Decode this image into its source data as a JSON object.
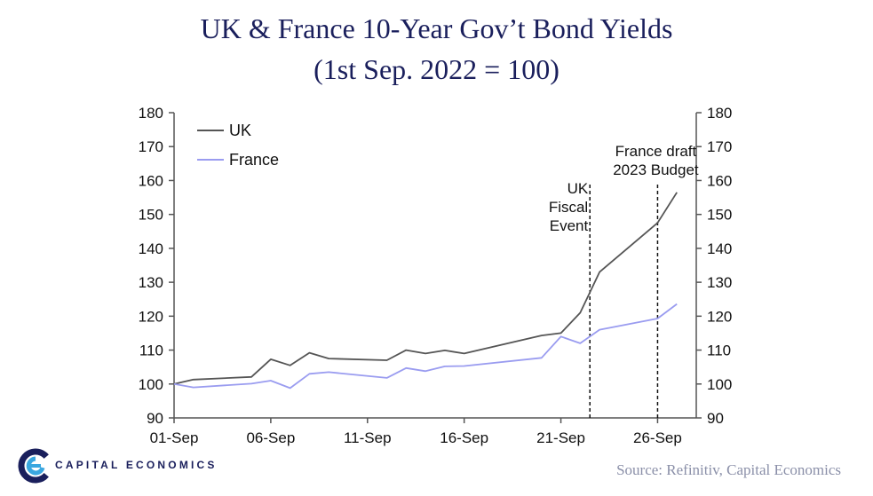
{
  "chart_data": {
    "type": "line",
    "title": "UK & France 10-Year Gov’t Bond Yields",
    "subtitle": "(1st Sep. 2022 = 100)",
    "xlabel": "",
    "ylabel": "",
    "x_range_days": [
      1,
      28
    ],
    "ylim": [
      90,
      180
    ],
    "y_ticks": [
      90,
      100,
      110,
      120,
      130,
      140,
      150,
      160,
      170,
      180
    ],
    "x_ticks": [
      {
        "day": 1,
        "label": "01-Sep"
      },
      {
        "day": 6,
        "label": "06-Sep"
      },
      {
        "day": 11,
        "label": "11-Sep"
      },
      {
        "day": 16,
        "label": "16-Sep"
      },
      {
        "day": 21,
        "label": "21-Sep"
      },
      {
        "day": 26,
        "label": "26-Sep"
      }
    ],
    "legend_position": "top-left",
    "series": [
      {
        "name": "UK",
        "color": "#555555",
        "points": [
          [
            1,
            100.0
          ],
          [
            2,
            101.3
          ],
          [
            5,
            102.1
          ],
          [
            6,
            107.3
          ],
          [
            7,
            105.5
          ],
          [
            8,
            109.2
          ],
          [
            9,
            107.5
          ],
          [
            12,
            107.0
          ],
          [
            13,
            110.0
          ],
          [
            14,
            109.0
          ],
          [
            15,
            109.9
          ],
          [
            16,
            109.0
          ],
          [
            20,
            114.3
          ],
          [
            21,
            115.0
          ],
          [
            22,
            121.0
          ],
          [
            23,
            133.0
          ],
          [
            26,
            147.5
          ],
          [
            27,
            156.5
          ]
        ]
      },
      {
        "name": "France",
        "color": "#9a9cf0",
        "points": [
          [
            1,
            100.0
          ],
          [
            2,
            99.0
          ],
          [
            5,
            100.1
          ],
          [
            6,
            101.0
          ],
          [
            7,
            98.8
          ],
          [
            8,
            103.0
          ],
          [
            9,
            103.5
          ],
          [
            12,
            101.8
          ],
          [
            13,
            104.7
          ],
          [
            14,
            103.8
          ],
          [
            15,
            105.2
          ],
          [
            16,
            105.3
          ],
          [
            20,
            107.7
          ],
          [
            21,
            114.0
          ],
          [
            22,
            112.0
          ],
          [
            23,
            116.0
          ],
          [
            26,
            119.3
          ],
          [
            27,
            123.6
          ]
        ]
      }
    ],
    "events": [
      {
        "day": 22.5,
        "label_lines": [
          "UK",
          "Fiscal",
          "Event"
        ]
      },
      {
        "day": 26,
        "label_lines": [
          "France draft",
          "2023 Budget"
        ]
      }
    ]
  },
  "footer": {
    "logo_text": "CAPITAL ECONOMICS",
    "source": "Source: Refinitiv, Capital Economics"
  }
}
